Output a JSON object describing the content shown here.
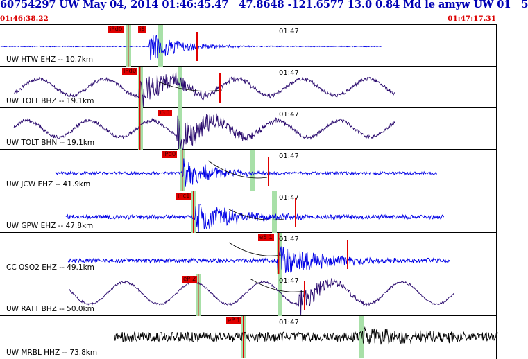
{
  "header": {
    "title": "60754297 UW May 04, 2014 01:46:45.47   47.8648 -121.6577 13.0 0.84 Md le amyw UW 01   5",
    "start_time": "01:46:38.22",
    "end_time": "01:47:17.31"
  },
  "colors": {
    "trace_blue": "#0000e6",
    "trace_purple": "#2a0a6e",
    "trace_black": "#000000",
    "pick_red": "#e00000",
    "window_green": "#a8e0a8",
    "header_blue": "#0000b4"
  },
  "minute_mark": "01:47",
  "panels": [
    {
      "station": "UW HTW EHZ -- 10.7km",
      "trace_color": "trace_blue",
      "picks": [
        "iPd0",
        "iS"
      ]
    },
    {
      "station": "UW TOLT BHZ -- 19.1km",
      "trace_color": "trace_purple",
      "picks": [
        "iPd0"
      ]
    },
    {
      "station": "UW TOLT BHN -- 19.1km",
      "trace_color": "trace_purple",
      "picks": [
        "iS 1"
      ]
    },
    {
      "station": "UW JCW EHZ -- 41.9km",
      "trace_color": "trace_blue",
      "picks": [
        "iPd0"
      ]
    },
    {
      "station": "UW GPW EHZ -- 47.8km",
      "trace_color": "trace_blue",
      "picks": [
        "iPc1"
      ]
    },
    {
      "station": "CC OSO2 EHZ -- 49.1km",
      "trace_color": "trace_blue",
      "picks": [
        "eS 1"
      ]
    },
    {
      "station": "UW RATT BHZ -- 50.0km",
      "trace_color": "trace_purple",
      "picks": [
        "eP 2"
      ]
    },
    {
      "station": "UW MRBL HHZ -- 73.8km",
      "trace_color": "trace_black",
      "picks": [
        "eP 1"
      ]
    }
  ]
}
